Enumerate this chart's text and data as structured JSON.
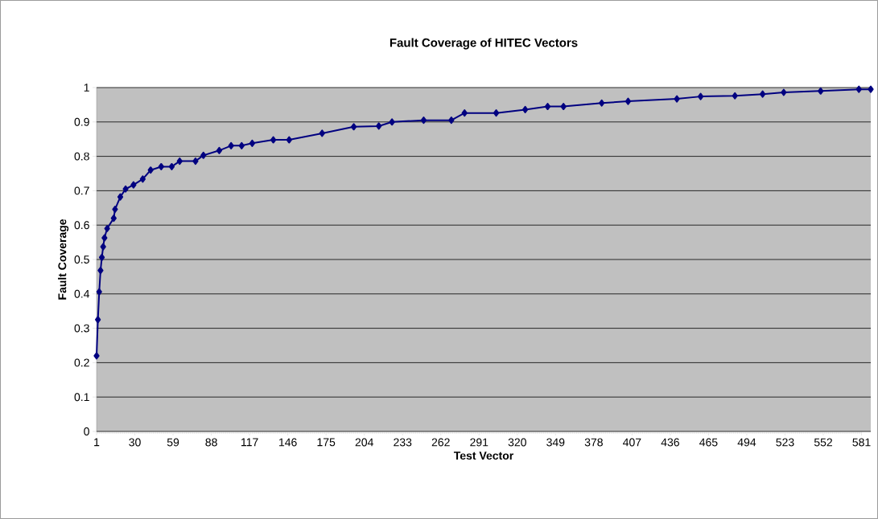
{
  "chart_data": {
    "type": "line",
    "title": "Fault Coverage of HITEC Vectors",
    "xlabel": "Test Vector",
    "ylabel": "Fault Coverage",
    "x": [
      1,
      2,
      3,
      4,
      5,
      6,
      7,
      9,
      14,
      15,
      19,
      23,
      29,
      36,
      42,
      50,
      58,
      64,
      76,
      82,
      94,
      103,
      111,
      119,
      135,
      147,
      172,
      196,
      215,
      225,
      249,
      270,
      280,
      304,
      326,
      343,
      355,
      384,
      404,
      441,
      459,
      485,
      506,
      522,
      550,
      579,
      588
    ],
    "values": [
      0.22,
      0.325,
      0.406,
      0.468,
      0.506,
      0.537,
      0.563,
      0.59,
      0.62,
      0.646,
      0.682,
      0.705,
      0.717,
      0.734,
      0.76,
      0.77,
      0.77,
      0.786,
      0.786,
      0.803,
      0.817,
      0.831,
      0.831,
      0.838,
      0.848,
      0.848,
      0.867,
      0.886,
      0.888,
      0.9,
      0.905,
      0.905,
      0.926,
      0.926,
      0.936,
      0.945,
      0.945,
      0.955,
      0.96,
      0.967,
      0.974,
      0.976,
      0.981,
      0.986,
      0.99,
      0.995,
      0.995
    ],
    "color": "#000080",
    "marker": "diamond",
    "grid": "y",
    "xlim": [
      1,
      588
    ],
    "xticks": [
      1,
      30,
      59,
      88,
      117,
      146,
      175,
      204,
      233,
      262,
      291,
      320,
      349,
      378,
      407,
      436,
      465,
      494,
      523,
      552,
      581
    ],
    "ylim": [
      0,
      1
    ],
    "yticks": [
      0,
      0.1,
      0.2,
      0.3,
      0.4,
      0.5,
      0.6,
      0.7,
      0.8,
      0.9,
      1
    ]
  }
}
